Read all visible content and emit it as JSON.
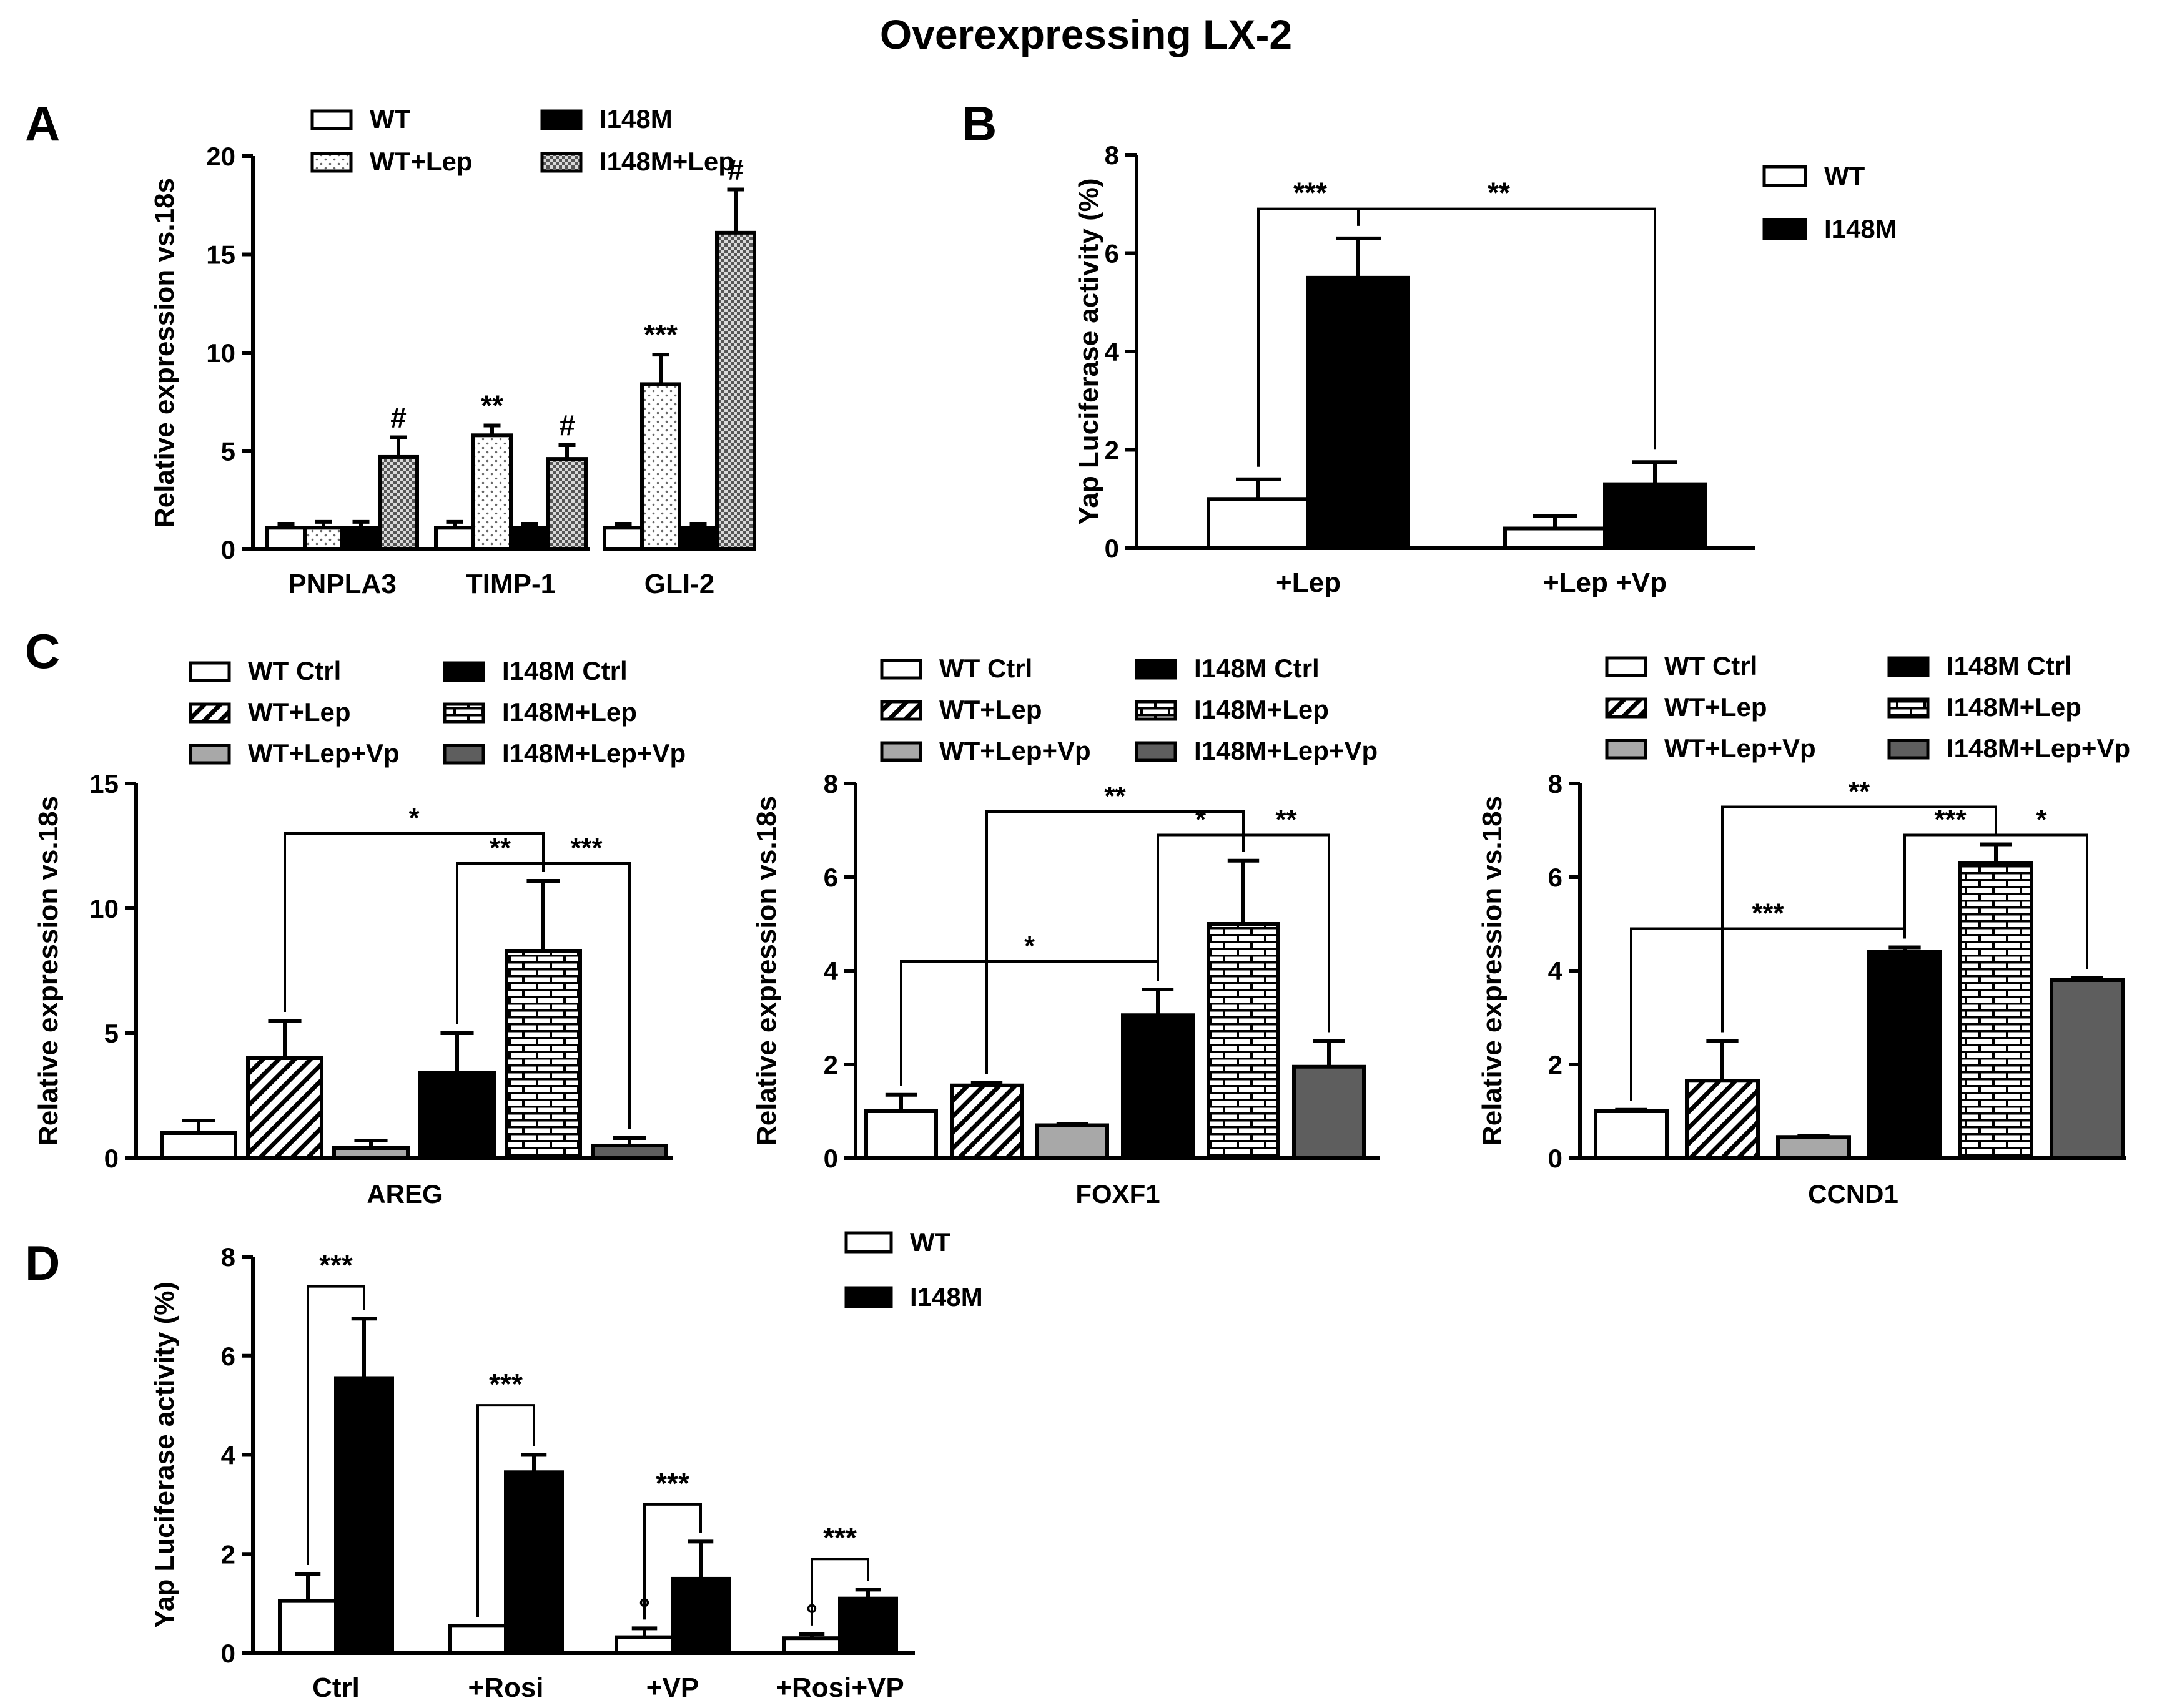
{
  "figure_title": "Overexpressing LX-2",
  "colors": {
    "black": "#000000",
    "white": "#ffffff",
    "light_gray": "#a8a8a8",
    "dark_gray": "#5e5e5e",
    "checker_dark": "#555555",
    "dot_fill": "#666666"
  },
  "panels": {
    "A": {
      "label": "A"
    },
    "B": {
      "label": "B"
    },
    "C": {
      "label": "C"
    },
    "D": {
      "label": "D"
    }
  },
  "chart_data": [
    {
      "id": "A",
      "type": "bar",
      "title": "",
      "xlabel": "",
      "ylabel": "Relative expression vs.18s",
      "ylim": [
        0,
        20
      ],
      "yticks": [
        "0",
        "5",
        "10",
        "15",
        "20"
      ],
      "categories": [
        "PNPLA3",
        "TIMP-1",
        "GLI-2"
      ],
      "legend": [
        "WT",
        "WT+Lep",
        "I148M",
        "I148M+Lep"
      ],
      "series": [
        {
          "name": "WT",
          "pattern": "white",
          "values": [
            1.1,
            1.1,
            1.1
          ],
          "errors": [
            0.2,
            0.3,
            0.2
          ]
        },
        {
          "name": "WT+Lep",
          "pattern": "dots",
          "values": [
            1.1,
            5.8,
            8.4
          ],
          "errors": [
            0.3,
            0.5,
            1.5
          ]
        },
        {
          "name": "I148M",
          "pattern": "black",
          "values": [
            1.1,
            1.1,
            1.1
          ],
          "errors": [
            0.3,
            0.2,
            0.2
          ]
        },
        {
          "name": "I148M+Lep",
          "pattern": "checker",
          "values": [
            4.7,
            4.6,
            16.1
          ],
          "errors": [
            1.0,
            0.7,
            2.2
          ]
        }
      ],
      "annotations": [
        {
          "category": 0,
          "series": 3,
          "text": "#"
        },
        {
          "category": 1,
          "series": 1,
          "text": "**"
        },
        {
          "category": 1,
          "series": 3,
          "text": "#"
        },
        {
          "category": 2,
          "series": 1,
          "text": "***"
        },
        {
          "category": 2,
          "series": 3,
          "text": "#"
        }
      ],
      "brackets": []
    },
    {
      "id": "B",
      "type": "bar",
      "title": "",
      "xlabel": "",
      "ylabel": "Yap Luciferase activity (%)",
      "ylim": [
        0,
        8
      ],
      "yticks": [
        "0",
        "2",
        "4",
        "6",
        "8"
      ],
      "categories": [
        "+Lep",
        "+Lep +Vp"
      ],
      "legend": [
        "WT",
        "I148M"
      ],
      "series": [
        {
          "name": "WT",
          "pattern": "white",
          "values": [
            1.0,
            0.4
          ],
          "errors": [
            0.4,
            0.25
          ]
        },
        {
          "name": "I148M",
          "pattern": "black",
          "values": [
            5.5,
            1.3
          ],
          "errors": [
            0.8,
            0.45
          ]
        }
      ],
      "annotations": [],
      "brackets": [
        {
          "from": [
            0,
            0
          ],
          "to": [
            0,
            1
          ],
          "y": 6.9,
          "text": "***",
          "label_offset": -0.3
        },
        {
          "from": [
            0,
            1
          ],
          "to": [
            1,
            1
          ],
          "y": 6.9,
          "text": "**",
          "label_offset": 0
        }
      ]
    },
    {
      "id": "C1",
      "type": "bar",
      "title": "",
      "xlabel": "AREG",
      "ylabel": "Relative expression vs.18s",
      "ylim": [
        0,
        15
      ],
      "yticks": [
        "0",
        "5",
        "10",
        "15"
      ],
      "categories": [
        "WT Ctrl",
        "WT+Lep",
        "WT+Lep+Vp",
        "I148M Ctrl",
        "I148M+Lep",
        "I148M+Lep+Vp"
      ],
      "legend": [
        "WT Ctrl",
        "I148M Ctrl",
        "WT+Lep",
        "I148M+Lep",
        "WT+Lep+Vp",
        "I148M+Lep+Vp"
      ],
      "series": [
        {
          "name": "AREG",
          "values": [
            1.0,
            4.0,
            0.4,
            3.4,
            8.3,
            0.5
          ],
          "errors": [
            0.5,
            1.5,
            0.3,
            1.6,
            2.8,
            0.3
          ],
          "patterns": [
            "white",
            "hatch",
            "light",
            "black",
            "brick",
            "dark"
          ]
        }
      ],
      "annotations": [],
      "brackets": [
        {
          "from": 1,
          "to": 4,
          "y": 13.0,
          "text": "*",
          "label_offset": 0
        },
        {
          "from": 3,
          "to": 4,
          "y": 11.8,
          "text": "**",
          "label_offset": 0
        },
        {
          "from": 4,
          "to": 5,
          "y": 11.8,
          "text": "***",
          "label_offset": 0
        }
      ]
    },
    {
      "id": "C2",
      "type": "bar",
      "title": "",
      "xlabel": "FOXF1",
      "ylabel": "Relative expression vs.18s",
      "ylim": [
        0,
        8
      ],
      "yticks": [
        "0",
        "2",
        "4",
        "6",
        "8"
      ],
      "categories": [
        "WT Ctrl",
        "WT+Lep",
        "WT+Lep+Vp",
        "I148M Ctrl",
        "I148M+Lep",
        "I148M+Lep+Vp"
      ],
      "legend": [
        "WT Ctrl",
        "I148M Ctrl",
        "WT+Lep",
        "I148M+Lep",
        "WT+Lep+Vp",
        "I148M+Lep+Vp"
      ],
      "series": [
        {
          "name": "FOXF1",
          "values": [
            1.0,
            1.55,
            0.7,
            3.05,
            5.0,
            1.95
          ],
          "errors": [
            0.35,
            0.05,
            0.03,
            0.55,
            1.35,
            0.55
          ],
          "patterns": [
            "white",
            "hatch",
            "light",
            "black",
            "brick",
            "dark"
          ]
        }
      ],
      "annotations": [],
      "brackets": [
        {
          "from": 1,
          "to": 4,
          "y": 7.4,
          "text": "**",
          "label_offset": 0
        },
        {
          "from": 3,
          "to": 4,
          "y": 6.9,
          "text": "*",
          "label_offset": 0
        },
        {
          "from": 4,
          "to": 5,
          "y": 6.9,
          "text": "**",
          "label_offset": 0
        },
        {
          "from": 0,
          "to": 3,
          "y": 4.2,
          "text": "*",
          "label_offset": 0
        }
      ]
    },
    {
      "id": "C3",
      "type": "bar",
      "title": "",
      "xlabel": "CCND1",
      "ylabel": "Relative expression vs.18s",
      "ylim": [
        0,
        8
      ],
      "yticks": [
        "0",
        "2",
        "4",
        "6",
        "8"
      ],
      "categories": [
        "WT Ctrl",
        "WT+Lep",
        "WT+Lep+Vp",
        "I148M Ctrl",
        "I148M+Lep",
        "I148M+Lep+Vp"
      ],
      "legend": [
        "WT Ctrl",
        "I148M Ctrl",
        "WT+Lep",
        "I148M+Lep",
        "WT+Lep+Vp",
        "I148M+Lep+Vp"
      ],
      "series": [
        {
          "name": "CCND1",
          "values": [
            1.0,
            1.65,
            0.45,
            4.4,
            6.3,
            3.8
          ],
          "errors": [
            0.03,
            0.85,
            0.03,
            0.1,
            0.4,
            0.05
          ],
          "patterns": [
            "white",
            "hatch",
            "light",
            "black",
            "brick",
            "dark"
          ]
        }
      ],
      "annotations": [],
      "brackets": [
        {
          "from": 1,
          "to": 4,
          "y": 7.5,
          "text": "**",
          "label_offset": 0
        },
        {
          "from": 3,
          "to": 4,
          "y": 6.9,
          "text": "***",
          "label_offset": 0
        },
        {
          "from": 4,
          "to": 5,
          "y": 6.9,
          "text": "*",
          "label_offset": 0
        },
        {
          "from": 0,
          "to": 3,
          "y": 4.9,
          "text": "***",
          "label_offset": 0
        }
      ]
    },
    {
      "id": "D",
      "type": "bar",
      "title": "",
      "xlabel": "",
      "ylabel": "Yap Luciferase activity (%)",
      "ylim": [
        0,
        8
      ],
      "yticks": [
        "0",
        "2",
        "4",
        "6",
        "8"
      ],
      "categories": [
        "Ctrl",
        "+Rosi",
        "+VP",
        "+Rosi+VP"
      ],
      "legend": [
        "WT",
        "I148M"
      ],
      "series": [
        {
          "name": "WT",
          "pattern": "white",
          "values": [
            1.05,
            0.55,
            0.32,
            0.3
          ],
          "errors": [
            0.55,
            0.0,
            0.18,
            0.08
          ]
        },
        {
          "name": "I148M",
          "pattern": "black",
          "values": [
            5.55,
            3.65,
            1.5,
            1.1
          ],
          "errors": [
            1.2,
            0.35,
            0.75,
            0.18
          ]
        }
      ],
      "annotations": [
        {
          "category": 2,
          "series": 0,
          "text": "°"
        },
        {
          "category": 3,
          "series": 0,
          "text": "°"
        }
      ],
      "brackets": [
        {
          "pair": 0,
          "y": 7.4,
          "text": "***"
        },
        {
          "pair": 1,
          "y": 5.0,
          "text": "***"
        },
        {
          "pair": 2,
          "y": 3.0,
          "text": "***"
        },
        {
          "pair": 3,
          "y": 1.9,
          "text": "***"
        }
      ]
    }
  ]
}
